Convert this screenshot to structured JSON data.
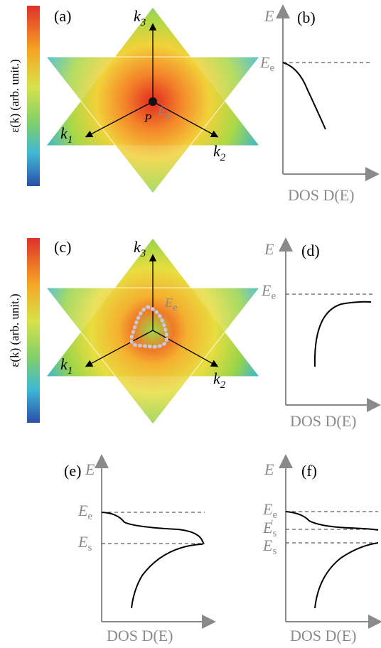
{
  "panels": {
    "a": {
      "label": "(a)",
      "colorbar_label": "ε(k) (arb. unit.)",
      "point": "P",
      "axes": [
        {
          "main": "k",
          "sub": "1"
        },
        {
          "main": "k",
          "sub": "2"
        },
        {
          "main": "k",
          "sub": "3"
        }
      ],
      "level": {
        "main": "E",
        "sub": "e"
      }
    },
    "b": {
      "label": "(b)",
      "y_label": "E",
      "x_label": "DOS D(E)",
      "levels": [
        {
          "main": "E",
          "sub": "e"
        }
      ]
    },
    "c": {
      "label": "(c)",
      "colorbar_label": "ε(k) (arb. unit.)",
      "axes": [
        {
          "main": "k",
          "sub": "1"
        },
        {
          "main": "k",
          "sub": "2"
        },
        {
          "main": "k",
          "sub": "3"
        }
      ],
      "level": {
        "main": "E",
        "sub": "e"
      }
    },
    "d": {
      "label": "(d)",
      "y_label": "E",
      "x_label": "DOS D(E)",
      "levels": [
        {
          "main": "E",
          "sub": "e"
        }
      ]
    },
    "e": {
      "label": "(e)",
      "y_label": "E",
      "x_label": "DOS D(E)",
      "levels": [
        {
          "main": "E",
          "sub": "e"
        },
        {
          "main": "E",
          "sub": "s"
        }
      ]
    },
    "f": {
      "label": "(f)",
      "y_label": "E",
      "x_label": "DOS D(E)",
      "levels": [
        {
          "main": "E",
          "sub": "e"
        },
        {
          "main": "E",
          "sub": "s",
          "prime": "′"
        },
        {
          "main": "E",
          "sub": "s"
        }
      ]
    }
  }
}
